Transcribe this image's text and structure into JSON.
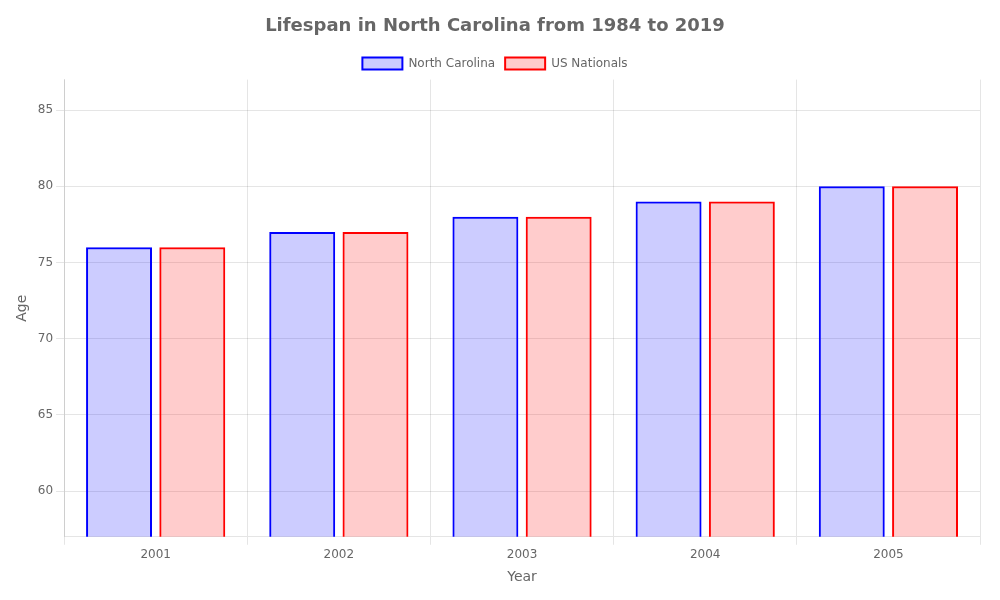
{
  "chart_data": {
    "type": "bar",
    "title": "Lifespan in North Carolina from 1984 to 2019",
    "xlabel": "Year",
    "ylabel": "Age",
    "categories": [
      "2001",
      "2002",
      "2003",
      "2004",
      "2005"
    ],
    "series": [
      {
        "name": "North Carolina",
        "color": "#0000ff",
        "values": [
          76,
          77,
          78,
          79,
          80
        ]
      },
      {
        "name": "US Nationals",
        "color": "#ff0000",
        "values": [
          76,
          77,
          78,
          79,
          80
        ]
      }
    ],
    "ylim": [
      57,
      87
    ],
    "yticks": [
      60,
      65,
      70,
      75,
      80,
      85
    ],
    "grid": true
  }
}
